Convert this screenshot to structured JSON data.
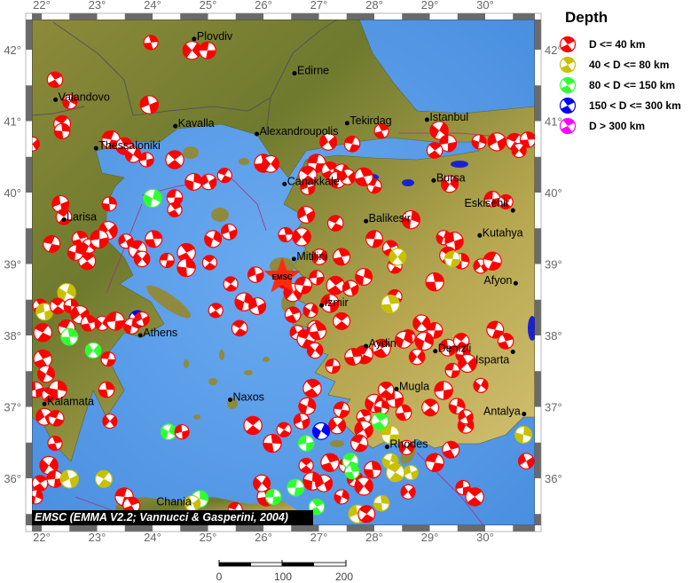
{
  "legend": {
    "title": "Depth",
    "items": [
      {
        "label": "D <= 40 km",
        "color": "#ff0000"
      },
      {
        "label": "40 < D <= 80 km",
        "color": "#c8c000"
      },
      {
        "label": "80 < D <= 150 km",
        "color": "#30ff30"
      },
      {
        "label": "150 < D <= 300 km",
        "color": "#0000ff"
      },
      {
        "label": "D > 300 km",
        "color": "#ff00ff"
      }
    ]
  },
  "axes": {
    "lon_ticks": [
      "22°",
      "23°",
      "24°",
      "25°",
      "26°",
      "27°",
      "28°",
      "29°",
      "30°"
    ],
    "lon_values": [
      22,
      23,
      24,
      25,
      26,
      27,
      28,
      29,
      30
    ],
    "lat_ticks": [
      "42°",
      "41°",
      "40°",
      "39°",
      "38°",
      "37°",
      "36°"
    ],
    "lat_values": [
      42,
      41,
      40,
      39,
      38,
      37,
      36
    ],
    "lon_range": [
      21.82,
      30.9
    ],
    "lat_range": [
      35.34,
      42.42
    ]
  },
  "cities": [
    {
      "name": "Plovdiv",
      "lon": 24.75,
      "lat": 42.15
    },
    {
      "name": "Edirne",
      "lon": 26.56,
      "lat": 41.67
    },
    {
      "name": "Valandovo",
      "lon": 22.25,
      "lat": 41.3
    },
    {
      "name": "Kavalla",
      "lon": 24.41,
      "lat": 40.93
    },
    {
      "name": "Alexandroupolis",
      "lon": 25.88,
      "lat": 40.82
    },
    {
      "name": "Tekirdag",
      "lon": 27.51,
      "lat": 40.97
    },
    {
      "name": "Istanbul",
      "lon": 28.95,
      "lat": 41.02
    },
    {
      "name": "Thessaloniki",
      "lon": 22.98,
      "lat": 40.62
    },
    {
      "name": "Canakkale",
      "lon": 26.38,
      "lat": 40.12
    },
    {
      "name": "Bursa",
      "lon": 29.07,
      "lat": 40.17
    },
    {
      "name": "Balikesir",
      "lon": 27.85,
      "lat": 39.6
    },
    {
      "name": "Eskisehir",
      "lon": 30.5,
      "lat": 39.75
    },
    {
      "name": "Kutahya",
      "lon": 29.9,
      "lat": 39.4
    },
    {
      "name": "Larisa",
      "lon": 22.4,
      "lat": 39.62
    },
    {
      "name": "Mitilini",
      "lon": 26.55,
      "lat": 39.07
    },
    {
      "name": "Afyon",
      "lon": 30.55,
      "lat": 38.73
    },
    {
      "name": "Izmir",
      "lon": 27.05,
      "lat": 38.42
    },
    {
      "name": "Athens",
      "lon": 23.78,
      "lat": 38.0
    },
    {
      "name": "Aydin",
      "lon": 27.85,
      "lat": 37.85
    },
    {
      "name": "Denizli",
      "lon": 29.1,
      "lat": 37.78
    },
    {
      "name": "Isparta",
      "lon": 30.5,
      "lat": 37.77
    },
    {
      "name": "Mugla",
      "lon": 28.4,
      "lat": 37.25
    },
    {
      "name": "Naxos",
      "lon": 25.4,
      "lat": 37.1
    },
    {
      "name": "Kalamata",
      "lon": 22.05,
      "lat": 37.04
    },
    {
      "name": "Antalya",
      "lon": 30.7,
      "lat": 36.9
    },
    {
      "name": "Rhodes",
      "lon": 28.23,
      "lat": 36.44
    },
    {
      "name": "Chania",
      "lon": 24.02,
      "lat": 35.52
    }
  ],
  "epicenter": {
    "label": "EMSC",
    "lon": 26.34,
    "lat": 38.82,
    "color": "#ff2a10"
  },
  "events": [
    [
      23.97,
      42.1,
      1
    ],
    [
      24.71,
      41.99,
      1
    ],
    [
      24.99,
      41.99,
      1
    ],
    [
      22.24,
      41.58,
      1
    ],
    [
      22.51,
      41.27,
      1
    ],
    [
      23.94,
      41.23,
      1
    ],
    [
      22.37,
      40.96,
      1
    ],
    [
      22.37,
      40.86,
      1
    ],
    [
      21.83,
      40.68,
      1
    ],
    [
      23.25,
      40.74,
      1
    ],
    [
      23.49,
      40.65,
      1
    ],
    [
      23.65,
      40.53,
      1
    ],
    [
      23.89,
      40.46,
      1
    ],
    [
      24.4,
      40.46,
      1
    ],
    [
      24.74,
      40.15,
      1
    ],
    [
      25.01,
      40.15,
      1
    ],
    [
      25.3,
      40.24,
      1
    ],
    [
      26.0,
      40.41,
      1
    ],
    [
      26.13,
      40.4,
      1
    ],
    [
      24.4,
      39.93,
      1
    ],
    [
      24.4,
      39.76,
      1
    ],
    [
      24.0,
      39.92,
      3
    ],
    [
      22.34,
      39.84,
      1
    ],
    [
      22.4,
      39.66,
      1
    ],
    [
      23.22,
      39.84,
      1
    ],
    [
      23.2,
      39.47,
      1
    ],
    [
      22.18,
      39.28,
      1
    ],
    [
      22.69,
      39.35,
      1
    ],
    [
      22.85,
      39.25,
      1
    ],
    [
      23.04,
      39.35,
      1
    ],
    [
      22.82,
      39.04,
      1
    ],
    [
      22.61,
      39.16,
      1
    ],
    [
      23.52,
      39.32,
      1
    ],
    [
      23.73,
      39.2,
      1
    ],
    [
      24.02,
      39.35,
      1
    ],
    [
      23.81,
      39.07,
      1
    ],
    [
      24.26,
      39.05,
      1
    ],
    [
      24.61,
      39.16,
      1
    ],
    [
      25.09,
      39.35,
      1
    ],
    [
      25.38,
      39.45,
      1
    ],
    [
      25.03,
      39.02,
      1
    ],
    [
      24.61,
      38.95,
      1
    ],
    [
      27.17,
      40.71,
      1
    ],
    [
      27.6,
      40.68,
      1
    ],
    [
      28.13,
      40.86,
      1
    ],
    [
      29.17,
      40.87,
      1
    ],
    [
      29.33,
      40.69,
      1
    ],
    [
      29.09,
      40.59,
      1
    ],
    [
      29.89,
      40.71,
      1
    ],
    [
      30.21,
      40.71,
      1
    ],
    [
      30.53,
      40.71,
      1
    ],
    [
      30.77,
      40.74,
      1
    ],
    [
      30.61,
      40.59,
      1
    ],
    [
      26.96,
      40.41,
      1
    ],
    [
      27.2,
      40.31,
      1
    ],
    [
      27.41,
      40.29,
      1
    ],
    [
      26.8,
      40.07,
      1
    ],
    [
      26.8,
      40.24,
      1
    ],
    [
      27.33,
      40.18,
      1
    ],
    [
      27.52,
      40.22,
      1
    ],
    [
      28.0,
      40.09,
      1
    ],
    [
      27.81,
      40.22,
      1
    ],
    [
      29.36,
      40.12,
      1
    ],
    [
      30.13,
      39.91,
      1
    ],
    [
      30.37,
      39.87,
      1
    ],
    [
      28.66,
      39.62,
      1
    ],
    [
      26.77,
      39.69,
      1
    ],
    [
      27.3,
      39.57,
      1
    ],
    [
      26.4,
      39.41,
      1
    ],
    [
      26.69,
      39.38,
      1
    ],
    [
      28.0,
      39.35,
      1
    ],
    [
      28.29,
      39.22,
      1
    ],
    [
      29.25,
      39.37,
      1
    ],
    [
      29.44,
      39.32,
      1
    ],
    [
      29.33,
      39.12,
      1
    ],
    [
      29.57,
      39.04,
      1
    ],
    [
      29.92,
      38.97,
      1
    ],
    [
      30.13,
      39.04,
      1
    ],
    [
      27.41,
      39.1,
      1
    ],
    [
      27.01,
      39.1,
      1
    ],
    [
      26.96,
      38.81,
      1
    ],
    [
      27.3,
      38.7,
      1
    ],
    [
      27.81,
      38.82,
      1
    ],
    [
      27.57,
      38.66,
      1
    ],
    [
      28.37,
      38.97,
      1
    ],
    [
      29.09,
      38.75,
      1
    ],
    [
      28.42,
      39.1,
      2
    ],
    [
      29.41,
      39.07,
      2
    ],
    [
      21.97,
      38.41,
      1
    ],
    [
      22.45,
      38.6,
      2
    ],
    [
      22.05,
      38.33,
      2
    ],
    [
      22.29,
      38.41,
      1
    ],
    [
      22.53,
      38.41,
      1
    ],
    [
      22.69,
      38.29,
      1
    ],
    [
      22.45,
      38.1,
      1
    ],
    [
      22.85,
      38.17,
      1
    ],
    [
      23.09,
      38.17,
      1
    ],
    [
      23.33,
      38.2,
      1
    ],
    [
      23.73,
      38.23,
      4
    ],
    [
      23.62,
      38.13,
      1
    ],
    [
      23.81,
      38.23,
      1
    ],
    [
      22.02,
      38.04,
      1
    ],
    [
      22.5,
      37.98,
      3
    ],
    [
      22.93,
      37.79,
      3
    ],
    [
      23.2,
      37.67,
      1
    ],
    [
      22.02,
      37.67,
      1
    ],
    [
      22.08,
      37.46,
      1
    ],
    [
      21.89,
      37.24,
      1
    ],
    [
      22.13,
      37.17,
      1
    ],
    [
      22.29,
      37.24,
      1
    ],
    [
      22.05,
      36.86,
      1
    ],
    [
      22.26,
      36.84,
      1
    ],
    [
      22.24,
      36.49,
      1
    ],
    [
      22.13,
      36.18,
      1
    ],
    [
      22.24,
      35.99,
      1
    ],
    [
      21.97,
      35.93,
      1
    ],
    [
      21.89,
      35.74,
      1
    ],
    [
      22.5,
      35.99,
      2
    ],
    [
      23.12,
      35.99,
      2
    ],
    [
      23.17,
      37.24,
      1
    ],
    [
      23.23,
      36.8,
      1
    ],
    [
      23.49,
      35.74,
      1
    ],
    [
      23.62,
      35.62,
      1
    ],
    [
      24.29,
      36.65,
      3
    ],
    [
      24.53,
      36.65,
      1
    ],
    [
      25.81,
      36.74,
      1
    ],
    [
      24.85,
      35.71,
      3
    ],
    [
      24.72,
      35.65,
      2
    ],
    [
      25.49,
      35.56,
      1
    ],
    [
      26.05,
      35.74,
      1
    ],
    [
      25.97,
      35.93,
      1
    ],
    [
      26.18,
      35.74,
      3
    ],
    [
      25.14,
      38.35,
      1
    ],
    [
      25.65,
      38.47,
      1
    ],
    [
      25.89,
      38.41,
      1
    ],
    [
      25.57,
      38.1,
      1
    ],
    [
      26.37,
      38.76,
      1
    ],
    [
      26.53,
      38.6,
      1
    ],
    [
      26.72,
      38.7,
      1
    ],
    [
      26.53,
      38.29,
      1
    ],
    [
      26.85,
      38.35,
      1
    ],
    [
      27.2,
      38.45,
      1
    ],
    [
      27.41,
      38.2,
      1
    ],
    [
      26.93,
      38.1,
      1
    ],
    [
      26.61,
      38.04,
      1
    ],
    [
      26.77,
      37.95,
      1
    ],
    [
      26.98,
      38.06,
      1
    ],
    [
      26.93,
      37.79,
      1
    ],
    [
      27.25,
      37.57,
      1
    ],
    [
      26.88,
      37.26,
      1
    ],
    [
      26.79,
      37.01,
      1
    ],
    [
      26.69,
      36.8,
      1
    ],
    [
      26.37,
      36.68,
      1
    ],
    [
      26.16,
      36.49,
      1
    ],
    [
      27.33,
      36.74,
      1
    ],
    [
      27.41,
      36.96,
      1
    ],
    [
      27.81,
      36.86,
      1
    ],
    [
      28.0,
      37.05,
      1
    ],
    [
      28.37,
      37.11,
      1
    ],
    [
      28.21,
      37.24,
      1
    ],
    [
      28.13,
      36.99,
      1
    ],
    [
      27.81,
      36.68,
      1
    ],
    [
      27.73,
      36.49,
      1
    ],
    [
      28.53,
      36.92,
      1
    ],
    [
      28.58,
      36.43,
      1
    ],
    [
      28.29,
      36.61,
      2
    ],
    [
      28.1,
      36.8,
      3
    ],
    [
      28.29,
      36.24,
      2
    ],
    [
      28.66,
      36.08,
      2
    ],
    [
      28.38,
      36.08,
      2
    ],
    [
      27.97,
      36.12,
      1
    ],
    [
      27.65,
      35.99,
      1
    ],
    [
      27.49,
      36.18,
      1
    ],
    [
      27.2,
      36.22,
      1
    ],
    [
      27.04,
      36.66,
      4
    ],
    [
      26.77,
      36.49,
      3
    ],
    [
      26.77,
      36.18,
      1
    ],
    [
      26.88,
      35.96,
      1
    ],
    [
      27.09,
      35.93,
      1
    ],
    [
      27.57,
      36.24,
      3
    ],
    [
      27.6,
      36.09,
      3
    ],
    [
      27.81,
      35.89,
      1
    ],
    [
      26.58,
      35.87,
      3
    ],
    [
      26.96,
      35.6,
      3
    ],
    [
      27.41,
      35.74,
      1
    ],
    [
      27.7,
      35.5,
      2
    ],
    [
      27.86,
      35.5,
      1
    ],
    [
      28.13,
      35.65,
      2
    ],
    [
      28.61,
      35.81,
      1
    ],
    [
      29.09,
      36.22,
      1
    ],
    [
      29.38,
      36.4,
      1
    ],
    [
      29.65,
      36.74,
      1
    ],
    [
      29.6,
      35.87,
      1
    ],
    [
      29.81,
      35.74,
      1
    ],
    [
      30.69,
      36.61,
      2
    ],
    [
      30.74,
      36.24,
      1
    ],
    [
      28.37,
      38.54,
      1
    ],
    [
      28.29,
      38.44,
      2
    ],
    [
      28.85,
      38.17,
      1
    ],
    [
      29.09,
      38.07,
      1
    ],
    [
      28.61,
      37.98,
      1
    ],
    [
      28.9,
      37.92,
      1
    ],
    [
      29.33,
      37.83,
      1
    ],
    [
      29.57,
      37.92,
      1
    ],
    [
      29.6,
      37.73,
      1
    ],
    [
      29.68,
      37.61,
      1
    ],
    [
      30.18,
      38.08,
      1
    ],
    [
      30.37,
      37.92,
      1
    ],
    [
      29.92,
      37.3,
      1
    ],
    [
      29.25,
      37.23,
      1
    ],
    [
      29.01,
      36.99,
      1
    ],
    [
      29.49,
      37.01,
      1
    ],
    [
      29.65,
      36.86,
      1
    ],
    [
      27.81,
      37.73,
      1
    ],
    [
      27.62,
      37.7,
      1
    ],
    [
      28.77,
      37.7,
      1
    ],
    [
      29.41,
      37.51,
      1
    ],
    [
      28.13,
      37.82,
      1
    ],
    [
      28.53,
      37.94,
      1
    ],
    [
      25.86,
      38.85,
      1
    ],
    [
      25.41,
      38.72,
      1
    ]
  ],
  "credit": "EMSC (EMMA V2.2; Vannucci & Gasperini, 2004)",
  "scale_bar": {
    "labels": [
      "0",
      "100",
      "200"
    ]
  },
  "colors": {
    "sea": "#5b9fe6",
    "land_low": "#6f7a2c",
    "land_high": "#cdb862",
    "lake": "#1a22d0",
    "plate_boundary": "#b02a8a"
  }
}
